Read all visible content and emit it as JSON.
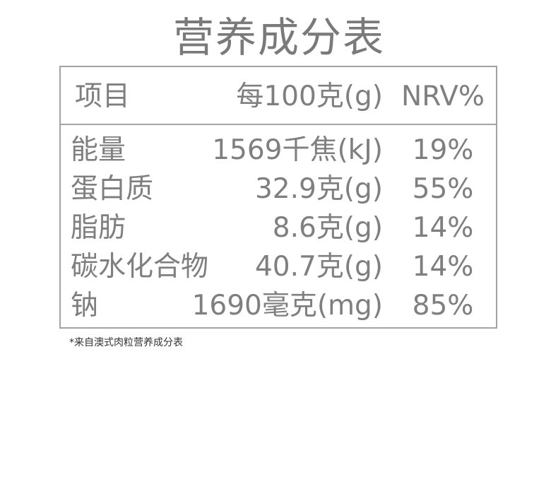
{
  "title": "营养成分表",
  "header": {
    "item": "项目",
    "per100": "每100克(g)",
    "nrv": "NRV%"
  },
  "rows": [
    {
      "item": "能量",
      "per100": "1569千焦(kJ)",
      "nrv": "19%"
    },
    {
      "item": "蛋白质",
      "per100": "32.9克(g)",
      "nrv": "55%"
    },
    {
      "item": "脂肪",
      "per100": "8.6克(g)",
      "nrv": "14%"
    },
    {
      "item": "碳水化合物",
      "per100": "40.7克(g)",
      "nrv": "14%"
    },
    {
      "item": "钠",
      "per100": "1690毫克(mg)",
      "nrv": "85%"
    }
  ],
  "footnote": "*来自澳式肉粒营养成分表",
  "colors": {
    "text": "#7f7f7f",
    "border": "#a3a3a3"
  }
}
